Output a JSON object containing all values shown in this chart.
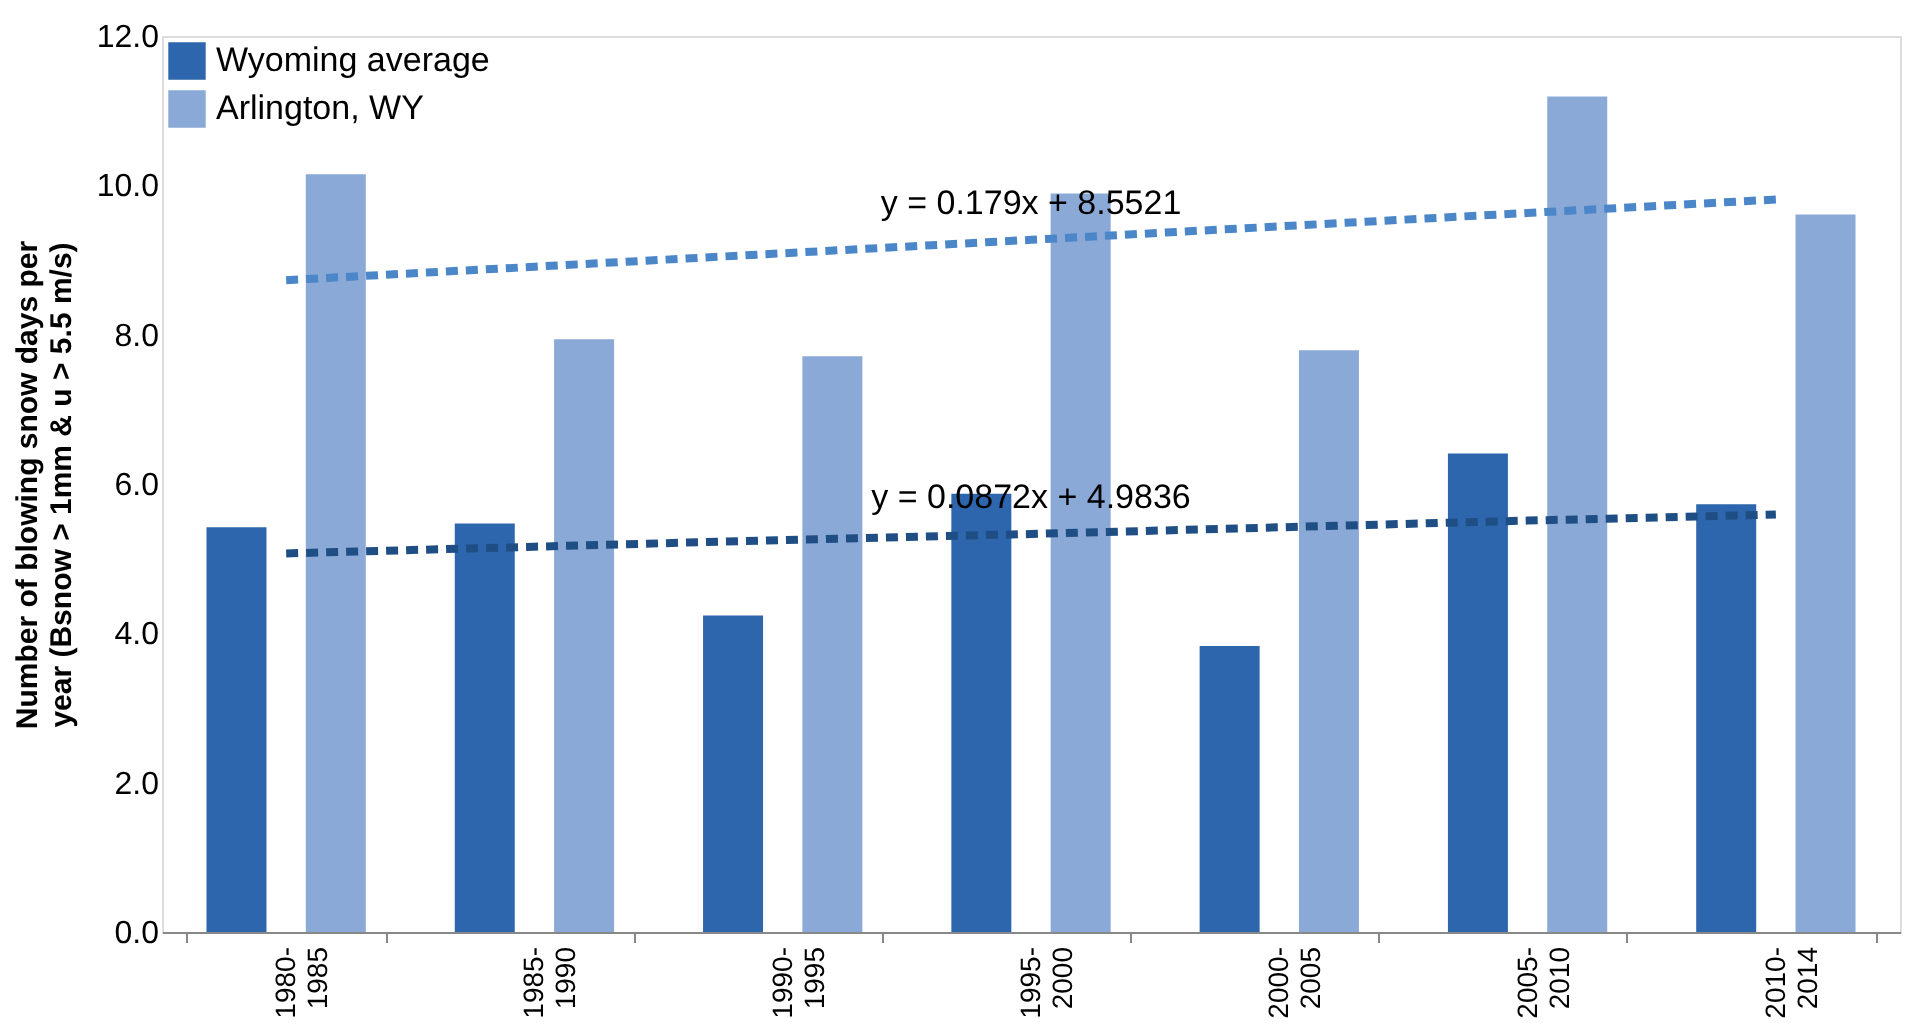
{
  "chart_data": {
    "type": "bar",
    "categories": [
      "1980-\n1985",
      "1985-\n1990",
      "1990-\n1995",
      "1995-\n2000",
      "2000-\n2005",
      "2005-\n2010",
      "2010-\n2014"
    ],
    "ylabel": "Number of blowing snow days per year (Bsnow > 1mm & u > 5.5 m/s)",
    "series": [
      {
        "name": "Wyoming average",
        "color": "#2e66ad",
        "values": [
          5.42,
          5.47,
          4.24,
          5.87,
          3.83,
          6.41,
          5.73
        ]
      },
      {
        "name": "Arlington, WY",
        "color": "#8aa9d6",
        "values": [
          10.15,
          7.94,
          7.71,
          9.89,
          7.79,
          11.19,
          9.61
        ]
      },
      {
        "type": "line",
        "color": "#4a86c8",
        "line_style": "dashed",
        "values": [
          8.73,
          8.91,
          9.09,
          9.27,
          9.45,
          9.63,
          9.81
        ]
      },
      {
        "type": "line",
        "color": "#1f4e85",
        "line_style": "dashed",
        "values": [
          5.07,
          5.16,
          5.25,
          5.33,
          5.42,
          5.51,
          5.59
        ]
      }
    ],
    "annotations": [
      {
        "text": "y = 0.179x + 8.5521",
        "x": "1995-\n2000",
        "y": 9.27
      },
      {
        "text": "y = 0.0872x + 4.9836",
        "x": "1995-\n2000",
        "y": 5.33
      }
    ],
    "ylim": [
      0,
      12
    ],
    "yticks": [
      {
        "value": 0,
        "label": "0.0"
      },
      {
        "value": 2,
        "label": "2.0"
      },
      {
        "value": 4,
        "label": "4.0"
      },
      {
        "value": 6,
        "label": "6.0"
      },
      {
        "value": 8,
        "label": "8.0"
      },
      {
        "value": 10,
        "label": "10.0"
      },
      {
        "value": 12,
        "label": "12.0"
      }
    ],
    "grid": false,
    "legend": "top left"
  }
}
